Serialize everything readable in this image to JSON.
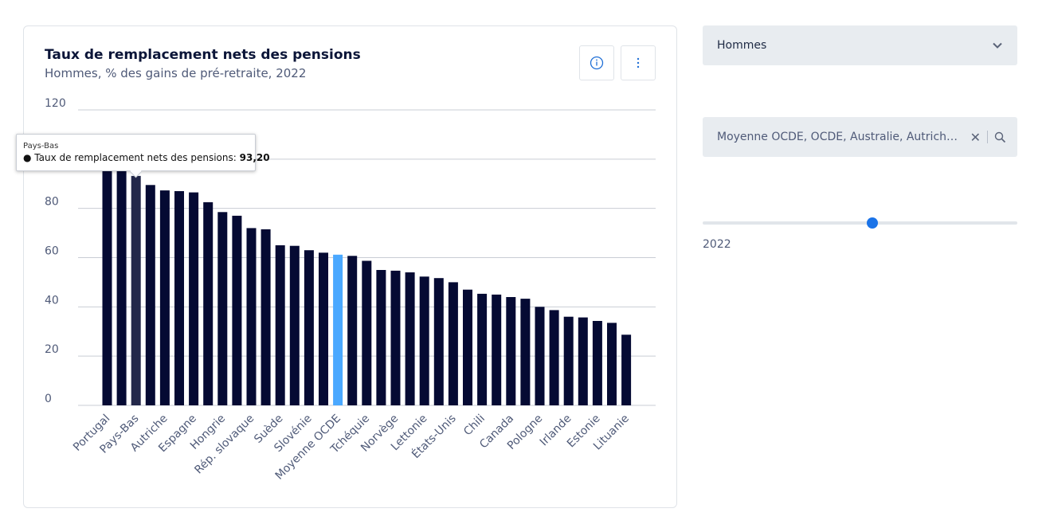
{
  "header": {
    "title": "Taux de remplacement nets des pensions",
    "subtitle": "Hommes, % des gains de pré-retraite, 2022"
  },
  "controls": {
    "sex_select": "Hommes",
    "countries_value": "Moyenne OCDE, OCDE, Australie, Autriche, B...",
    "year": "2022"
  },
  "tooltip": {
    "country": "Pays-Bas",
    "label": "● Taux de remplacement nets des pensions: ",
    "value": "93,20"
  },
  "colors": {
    "bar": "#050a33",
    "highlight": "#4aa8ff",
    "hover": "#23284a",
    "grid": "#c9cdd4",
    "accent": "#1a73e8"
  },
  "chart_data": {
    "type": "bar",
    "title": "Taux de remplacement nets des pensions",
    "subtitle": "Hommes, % des gains de pré-retraite, 2022",
    "ylim": [
      0,
      120
    ],
    "yticks": [
      0,
      20,
      40,
      60,
      80,
      100,
      120
    ],
    "grid": true,
    "labeled_categories": [
      "Portugal",
      "Pays-Bas",
      "Autriche",
      "Espagne",
      "Hongrie",
      "Rép. slovaque",
      "Suède",
      "Slovénie",
      "Moyenne OCDE",
      "Tchéquie",
      "Norvège",
      "Lettonie",
      "États-Unis",
      "Chili",
      "Canada",
      "Pologne",
      "Irlande",
      "Estonie",
      "Lituanie"
    ],
    "categories": [
      "Portugal",
      "",
      "Pays-Bas",
      "",
      "Autriche",
      "",
      "Espagne",
      "",
      "Hongrie",
      "",
      "Rép. slovaque",
      "",
      "Suède",
      "",
      "Slovénie",
      "",
      "Moyenne OCDE",
      "",
      "Tchéquie",
      "",
      "Norvège",
      "",
      "Lettonie",
      "",
      "États-Unis",
      "",
      "Chili",
      "",
      "Canada",
      "",
      "Pologne",
      "",
      "Irlande",
      "",
      "Estonie",
      "",
      "Lituanie"
    ],
    "values": [
      98.5,
      96.0,
      93.2,
      89.5,
      87.3,
      87.0,
      86.5,
      82.5,
      78.5,
      77.0,
      72.0,
      71.5,
      65.0,
      64.8,
      63.0,
      62.0,
      61.2,
      60.7,
      58.7,
      55.0,
      54.7,
      54.0,
      52.3,
      51.7,
      50.0,
      47.0,
      45.3,
      45.0,
      44.0,
      43.3,
      40.0,
      38.7,
      36.0,
      35.7,
      34.3,
      33.5,
      28.7
    ],
    "highlight_index": 16,
    "hover_index": 2
  }
}
